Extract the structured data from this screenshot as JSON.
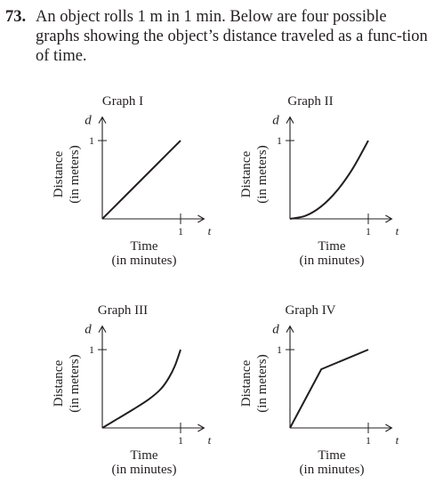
{
  "problem": {
    "number": "73.",
    "text": "An object rolls 1 m in 1 min. Below are four possible graphs showing the object’s distance traveled as a func-tion of time."
  },
  "chart_data": [
    {
      "type": "line",
      "title": "Graph I",
      "xlabel": "Time",
      "xlabel_sub": "(in minutes)",
      "ylabel": "Distance",
      "ylabel_sub": "(in meters)",
      "x_axis_symbol": "t",
      "y_axis_symbol": "d",
      "x_ticks": [
        1
      ],
      "y_ticks": [
        1
      ],
      "xlim": [
        0,
        1.3
      ],
      "ylim": [
        0,
        1.3
      ],
      "series": [
        {
          "x": [
            0,
            0.25,
            0.5,
            0.75,
            1
          ],
          "y": [
            0,
            0.25,
            0.5,
            0.75,
            1
          ]
        }
      ]
    },
    {
      "type": "line",
      "title": "Graph II",
      "xlabel": "Time",
      "xlabel_sub": "(in minutes)",
      "ylabel": "Distance",
      "ylabel_sub": "(in meters)",
      "x_axis_symbol": "t",
      "y_axis_symbol": "d",
      "x_ticks": [
        1
      ],
      "y_ticks": [
        1
      ],
      "xlim": [
        0,
        1.3
      ],
      "ylim": [
        0,
        1.3
      ],
      "series": [
        {
          "x": [
            0,
            0.2,
            0.4,
            0.6,
            0.8,
            1
          ],
          "y": [
            0,
            0.04,
            0.16,
            0.36,
            0.64,
            1
          ]
        }
      ]
    },
    {
      "type": "line",
      "title": "Graph III",
      "xlabel": "Time",
      "xlabel_sub": "(in minutes)",
      "ylabel": "Distance",
      "ylabel_sub": "(in meters)",
      "x_axis_symbol": "t",
      "y_axis_symbol": "d",
      "x_ticks": [
        1
      ],
      "y_ticks": [
        1
      ],
      "xlim": [
        0,
        1.3
      ],
      "ylim": [
        0,
        1.3
      ],
      "series": [
        {
          "x": [
            0,
            0.2,
            0.4,
            0.6,
            0.75,
            0.85,
            0.93,
            1
          ],
          "y": [
            0,
            0.12,
            0.24,
            0.37,
            0.5,
            0.64,
            0.8,
            1
          ]
        }
      ]
    },
    {
      "type": "line",
      "title": "Graph IV",
      "xlabel": "Time",
      "xlabel_sub": "(in minutes)",
      "ylabel": "Distance",
      "ylabel_sub": "(in meters)",
      "x_axis_symbol": "t",
      "y_axis_symbol": "d",
      "x_ticks": [
        1
      ],
      "y_ticks": [
        1
      ],
      "xlim": [
        0,
        1.3
      ],
      "ylim": [
        0,
        1.3
      ],
      "series": [
        {
          "x": [
            0,
            0.4,
            1
          ],
          "y": [
            0,
            0.75,
            1
          ]
        }
      ]
    }
  ]
}
